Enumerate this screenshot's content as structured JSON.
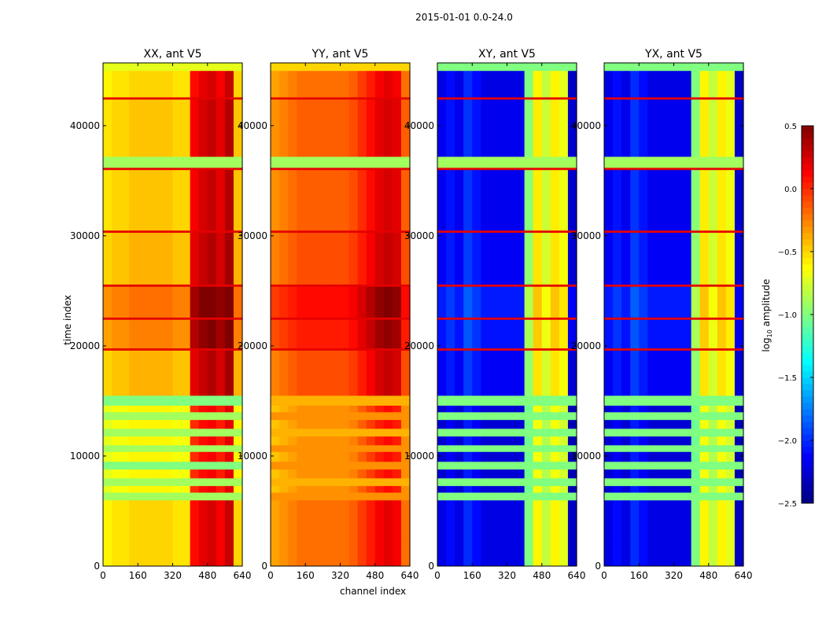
{
  "chart_data": {
    "type": "heatmap",
    "title": "2015-01-01 0.0-24.0",
    "xlabel": "channel index",
    "ylabel": "time index",
    "xlim": [
      0,
      640
    ],
    "ylim": [
      0,
      45700
    ],
    "xticks": [
      0,
      160,
      320,
      480,
      640
    ],
    "xtick_labels": [
      "0",
      "160",
      "320",
      "480",
      "640"
    ],
    "yticks": [
      0,
      10000,
      20000,
      30000,
      40000
    ],
    "ytick_labels": [
      "0",
      "10000",
      "20000",
      "30000",
      "40000"
    ],
    "colormap": "jet",
    "colorbar": {
      "label": "log10 amplitude",
      "label_main": "log",
      "label_sub": "10",
      "label_rest": " amplitude",
      "range": [
        -2.5,
        0.5
      ],
      "ticks": [
        0.5,
        0.0,
        -0.5,
        -1.0,
        -1.5,
        -2.0,
        -2.5
      ],
      "tick_labels": [
        "0.5",
        "0.0",
        "−0.5",
        "−1.0",
        "−1.5",
        "−2.0",
        "−2.5"
      ]
    },
    "channel_bin_width": 40,
    "panels": [
      {
        "title": "XX, ant V5",
        "profile": [
          -0.6,
          -0.55,
          -0.55,
          -0.5,
          -0.5,
          -0.5,
          -0.5,
          -0.5,
          -0.55,
          -0.55,
          0.1,
          0.2,
          0.25,
          0.15,
          0.3,
          -0.5
        ]
      },
      {
        "title": "YY, ant V5",
        "profile": [
          -0.35,
          -0.3,
          -0.25,
          -0.2,
          -0.2,
          -0.2,
          -0.2,
          -0.2,
          -0.2,
          -0.15,
          -0.05,
          0.05,
          0.15,
          0.2,
          0.15,
          -0.2
        ]
      },
      {
        "title": "XY, ant V5",
        "profile": [
          -2.2,
          -2.1,
          -2.2,
          -2.0,
          -2.1,
          -2.2,
          -2.2,
          -2.2,
          -2.2,
          -2.2,
          -1.0,
          -0.6,
          -0.8,
          -0.6,
          -0.7,
          -2.3
        ]
      },
      {
        "title": "YX, ant V5",
        "profile": [
          -2.2,
          -2.1,
          -2.2,
          -2.0,
          -2.1,
          -2.2,
          -2.2,
          -2.2,
          -2.2,
          -2.2,
          -1.0,
          -0.6,
          -0.8,
          -0.6,
          -0.7,
          -2.3
        ]
      }
    ],
    "time_segments": [
      {
        "t0": 0,
        "t1": 2700,
        "offset": 0
      },
      {
        "t0": 2700,
        "t1": 6000,
        "offset": 0
      },
      {
        "t0": 6000,
        "t1": 6700,
        "flat": [
          -0.9,
          -0.3,
          -1.0,
          -1.0
        ]
      },
      {
        "t0": 6700,
        "t1": 7300,
        "offset": -0.1
      },
      {
        "t0": 7300,
        "t1": 8000,
        "flat": [
          -0.9,
          -0.4,
          -1.0,
          -1.0
        ]
      },
      {
        "t0": 8000,
        "t1": 8800,
        "offset": -0.1
      },
      {
        "t0": 8800,
        "t1": 9500,
        "flat": [
          -1.0,
          -0.3,
          -1.0,
          -1.0
        ]
      },
      {
        "t0": 9500,
        "t1": 10400,
        "offset": -0.1
      },
      {
        "t0": 10400,
        "t1": 11000,
        "flat": [
          -0.9,
          -0.3,
          -1.0,
          -1.0
        ]
      },
      {
        "t0": 11000,
        "t1": 11800,
        "offset": -0.1
      },
      {
        "t0": 11800,
        "t1": 12500,
        "flat": [
          -0.9,
          -0.4,
          -1.0,
          -1.0
        ]
      },
      {
        "t0": 12500,
        "t1": 13300,
        "offset": -0.1
      },
      {
        "t0": 13300,
        "t1": 14000,
        "flat": [
          -0.9,
          -0.3,
          -1.0,
          -1.0
        ]
      },
      {
        "t0": 14000,
        "t1": 14600,
        "offset": -0.1
      },
      {
        "t0": 14600,
        "t1": 15500,
        "flat": [
          -1.0,
          -0.4,
          -1.0,
          -1.0
        ]
      },
      {
        "t0": 15500,
        "t1": 19600,
        "offset": 0.1
      },
      {
        "t0": 19600,
        "t1": 19800,
        "flat": [
          0.2,
          0.2,
          0.2,
          0.2
        ]
      },
      {
        "t0": 19800,
        "t1": 22400,
        "offset": 0.25
      },
      {
        "t0": 22400,
        "t1": 22600,
        "flat": [
          0.2,
          0.2,
          0.2,
          0.2
        ]
      },
      {
        "t0": 22600,
        "t1": 25400,
        "offset": 0.3
      },
      {
        "t0": 25400,
        "t1": 25600,
        "flat": [
          0.2,
          0.2,
          0.2,
          0.2
        ]
      },
      {
        "t0": 25600,
        "t1": 30300,
        "offset": 0.1
      },
      {
        "t0": 30300,
        "t1": 30500,
        "flat": [
          0.2,
          0.2,
          0.2,
          0.2
        ]
      },
      {
        "t0": 30500,
        "t1": 36000,
        "offset": 0.05
      },
      {
        "t0": 36000,
        "t1": 36200,
        "flat": [
          0.2,
          0.2,
          0.2,
          0.2
        ]
      },
      {
        "t0": 36200,
        "t1": 37200,
        "flat": [
          -0.9,
          -0.9,
          -0.9,
          -0.9
        ]
      },
      {
        "t0": 37200,
        "t1": 42400,
        "offset": 0.05
      },
      {
        "t0": 42400,
        "t1": 42600,
        "flat": [
          0.2,
          0.2,
          0.2,
          0.2
        ]
      },
      {
        "t0": 42600,
        "t1": 45000,
        "offset": 0
      },
      {
        "t0": 45000,
        "t1": 45700,
        "flat": [
          -0.7,
          -0.5,
          -1.0,
          -1.0
        ]
      }
    ]
  }
}
